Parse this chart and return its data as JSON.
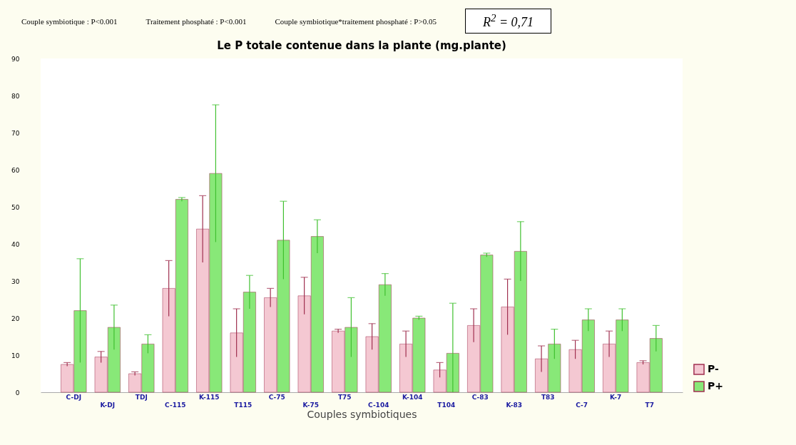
{
  "chart_data": {
    "type": "bar",
    "title": "Le P totale contenue dans la plante (mg.plante)",
    "xlabel": "Couples symbiotiques",
    "annotations": [
      "Couple symbiotique : P<0.001",
      "Traitement phosphaté : P<0.001",
      "Couple symbiotique*traitement phosphaté : P>0.05",
      "R$^{2}$ = 0,71"
    ],
    "categories": [
      "C-DJ",
      "K-DJ",
      "TDJ",
      "C-115",
      "K-115",
      "T115",
      "C-75",
      "K-75",
      "T75",
      "C-104",
      "K-104",
      "T104",
      "C-83",
      "K-83",
      "T83",
      "C-7",
      "K-7",
      "T7"
    ],
    "series": [
      {
        "name": "P-",
        "color": "#f4c8d2",
        "values": [
          7.5,
          9.5,
          5,
          28,
          44,
          16,
          25.5,
          26,
          16.5,
          15,
          13,
          6,
          18,
          23,
          9,
          11.5,
          13,
          8
        ],
        "errors": [
          0.5,
          1.5,
          0.5,
          7.5,
          9,
          6.5,
          2.5,
          5,
          0.5,
          3.5,
          3.5,
          2,
          4.5,
          7.5,
          3.5,
          2.5,
          3.5,
          0.5
        ]
      },
      {
        "name": "P+",
        "color": "#88e878",
        "values": [
          22,
          17.5,
          13,
          52,
          59,
          27,
          41,
          42,
          17.5,
          29,
          20,
          10.5,
          37,
          38,
          13,
          19.5,
          19.5,
          14.5
        ],
        "errors": [
          14,
          6,
          2.5,
          0.5,
          18.5,
          4.5,
          10.5,
          4.5,
          8,
          3,
          0.5,
          [
            0,
            24
          ],
          0.5,
          8,
          4,
          3,
          3,
          3.5
        ]
      }
    ],
    "ylim": [
      0,
      90
    ],
    "yticks": [
      0,
      10,
      20,
      30,
      40,
      50,
      60,
      70,
      80,
      90
    ],
    "grid": false,
    "legend": "bottom right"
  }
}
